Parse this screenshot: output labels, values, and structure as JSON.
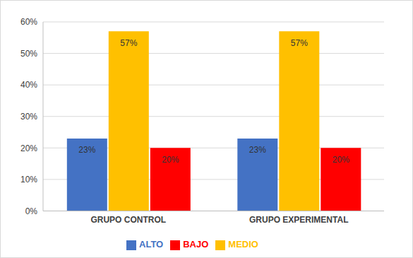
{
  "chart_data": {
    "type": "bar",
    "categories": [
      "GRUPO CONTROL",
      "GRUPO EXPERIMENTAL"
    ],
    "series": [
      {
        "name": "ALTO",
        "color": "#4472c4",
        "values": [
          23,
          23
        ],
        "value_labels": [
          "23%",
          "23%"
        ]
      },
      {
        "name": "MEDIO",
        "color": "#ffc000",
        "values": [
          57,
          57
        ],
        "value_labels": [
          "57%",
          "57%"
        ]
      },
      {
        "name": "BAJO",
        "color": "#ff0000",
        "values": [
          20,
          20
        ],
        "value_labels": [
          "20%",
          "20%"
        ]
      }
    ],
    "ylim": [
      0,
      60
    ],
    "yticks": [
      {
        "value": 0,
        "label": "0%"
      },
      {
        "value": 10,
        "label": "10%"
      },
      {
        "value": 20,
        "label": "20%"
      },
      {
        "value": 30,
        "label": "30%"
      },
      {
        "value": 40,
        "label": "40%"
      },
      {
        "value": 50,
        "label": "50%"
      },
      {
        "value": 60,
        "label": "60%"
      }
    ],
    "grid": true,
    "legend": "bottom",
    "data_labels": true
  }
}
